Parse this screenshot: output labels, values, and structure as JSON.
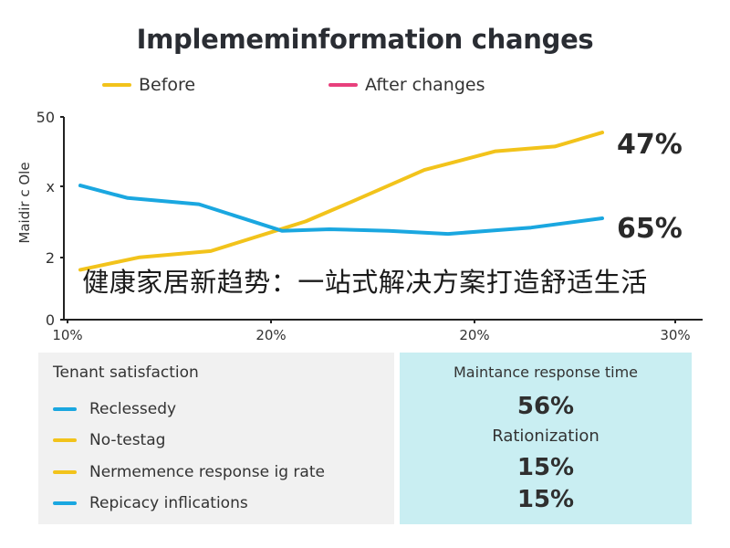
{
  "colors": {
    "before": "#f2c31b",
    "after": "#e8407c",
    "blue": "#1aa7e0",
    "panel_left": "#f1f1f1",
    "panel_right": "#c9eef2"
  },
  "banner": "健康家居新趋势：一站式解决方案打造舒适生活",
  "chart_data": {
    "type": "line",
    "title": "Implememinformation changes",
    "legend": [
      {
        "label": "Before",
        "color": "#f2c31b"
      },
      {
        "label": "After changes",
        "color": "#e8407c"
      }
    ],
    "legend_placement": "top",
    "ylabel": "Maidir c Ole",
    "x_tick_labels": [
      "10%",
      "20%",
      "20%",
      "30%"
    ],
    "y_tick_labels": [
      "0",
      "2",
      "x",
      "50"
    ],
    "grid": false,
    "series": [
      {
        "color": "#f2c31b",
        "x": [
          0,
          0.1,
          0.22,
          0.38,
          0.46,
          0.58,
          0.7,
          0.8,
          0.88
        ],
        "y": [
          0.32,
          0.4,
          0.44,
          0.63,
          0.76,
          0.96,
          1.08,
          1.11,
          1.2
        ]
      },
      {
        "color": "#1aa7e0",
        "x": [
          0,
          0.08,
          0.2,
          0.34,
          0.42,
          0.52,
          0.62,
          0.76,
          0.88
        ],
        "y": [
          0.86,
          0.78,
          0.74,
          0.57,
          0.58,
          0.57,
          0.55,
          0.59,
          0.65
        ]
      }
    ],
    "annotations": [
      "47%",
      "65%"
    ]
  },
  "panel_left": {
    "title": "Tenant satisfaction",
    "items": [
      {
        "label": "Reclessedy",
        "color": "#1aa7e0"
      },
      {
        "label": "No-testag",
        "color": "#f2c31b"
      },
      {
        "label": "Nermemence response ig rate",
        "color": "#f2c31b"
      },
      {
        "label": "Repicacy inflications",
        "color": "#1aa7e0"
      }
    ]
  },
  "panel_right": {
    "title": "Maintance response time",
    "value_1": "56%",
    "subtitle": "Rationization",
    "value_2": "15%",
    "value_3": "15%"
  }
}
